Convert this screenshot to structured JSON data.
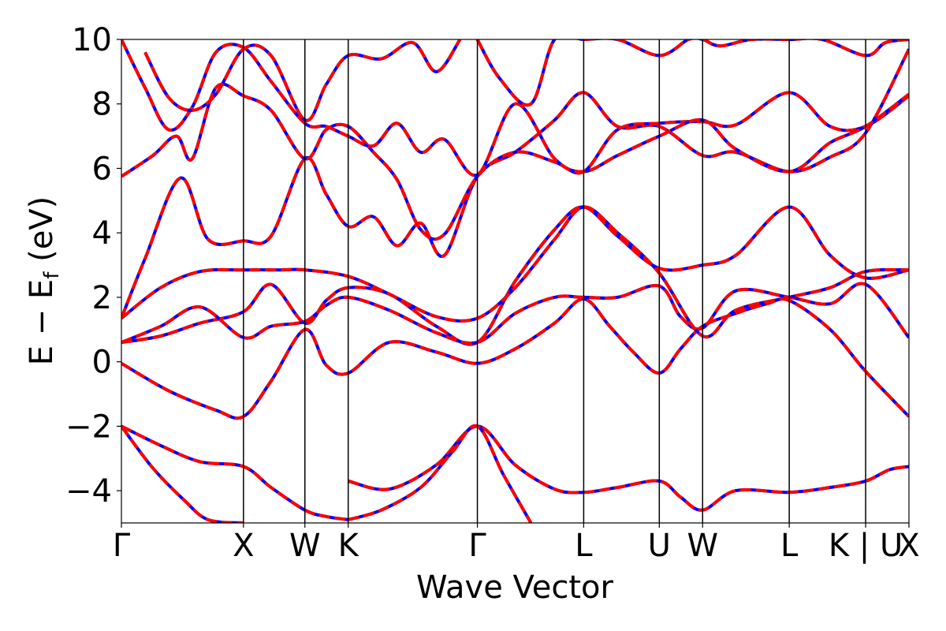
{
  "chart_data": {
    "type": "line",
    "title": "",
    "xlabel": "Wave Vector",
    "ylabel_parts": {
      "main": "E − E",
      "sub": "f",
      "unit": " (eV)"
    },
    "ylim": [
      -5,
      10
    ],
    "xlim": [
      0,
      10
    ],
    "yticks": [
      -4,
      -2,
      0,
      2,
      4,
      6,
      8,
      10
    ],
    "ytick_labels": [
      "−4",
      "−2",
      "0",
      "2",
      "4",
      "6",
      "8",
      "10"
    ],
    "kpoints": [
      {
        "label": "Γ",
        "x": 0.0
      },
      {
        "label": "X",
        "x": 1.55
      },
      {
        "label": "W",
        "x": 2.33
      },
      {
        "label": "K",
        "x": 2.88
      },
      {
        "label": "Γ",
        "x": 4.52
      },
      {
        "label": "L",
        "x": 5.87
      },
      {
        "label": "U",
        "x": 6.83
      },
      {
        "label": "W",
        "x": 7.38
      },
      {
        "label": "L",
        "x": 8.48
      },
      {
        "label": "K | U",
        "x": 9.45
      },
      {
        "label": "X",
        "x": 10.0
      }
    ],
    "grid": false,
    "series_colors": {
      "solid": "#ff0000",
      "dashed": "#0000ff"
    },
    "series": [
      {
        "style": "solid-red-with-blue-dash",
        "x": [
          0,
          0.5,
          1.0,
          1.55,
          1.9,
          2.33,
          2.6,
          2.88
        ],
        "y": [
          -2.0,
          -2.6,
          -3.1,
          -3.25,
          -3.9,
          -4.6,
          -4.8,
          -4.9
        ]
      },
      {
        "style": "solid-red-with-blue-dash",
        "x": [
          0,
          0.4,
          0.8,
          1.1,
          1.55
        ],
        "y": [
          -2.0,
          -3.3,
          -4.3,
          -4.9,
          -5.0
        ]
      },
      {
        "style": "solid-red-with-blue-dash",
        "x": [
          2.88,
          3.4,
          4.0,
          4.52,
          5.0,
          5.5,
          5.87,
          6.3,
          6.83,
          7.1,
          7.38,
          7.8,
          8.48,
          9.0,
          9.45,
          9.75,
          10.0
        ],
        "y": [
          -3.7,
          -3.95,
          -3.2,
          -2.0,
          -3.2,
          -3.95,
          -4.05,
          -3.9,
          -3.7,
          -4.2,
          -4.6,
          -4.0,
          -4.05,
          -3.9,
          -3.7,
          -3.35,
          -3.25
        ]
      },
      {
        "style": "solid-red-with-blue-dash",
        "x": [
          2.88,
          3.3,
          3.8,
          4.2,
          4.52,
          4.85,
          5.2
        ],
        "y": [
          -4.9,
          -4.6,
          -3.9,
          -2.8,
          -2.0,
          -3.5,
          -5.0
        ]
      },
      {
        "style": "solid-red-with-blue-dash",
        "x": [
          0,
          0.6,
          1.2,
          1.55,
          1.9,
          2.33,
          2.6,
          2.88,
          3.4,
          4.0,
          4.52,
          5.0,
          5.5,
          5.87,
          6.2,
          6.5,
          6.83,
          7.1,
          7.38,
          7.8,
          8.2,
          8.48,
          9.0,
          9.45,
          10.0
        ],
        "y": [
          -0.05,
          -0.9,
          -1.5,
          -1.7,
          -0.6,
          1.0,
          -0.1,
          -0.35,
          0.6,
          0.3,
          -0.05,
          0.4,
          1.2,
          1.95,
          1.1,
          0.3,
          -0.35,
          0.4,
          1.1,
          1.5,
          1.8,
          1.9,
          1.0,
          -0.3,
          -1.7
        ]
      },
      {
        "style": "solid-red-with-blue-dash",
        "x": [
          0,
          0.5,
          1.0,
          1.55,
          1.9,
          2.33,
          2.6,
          2.88,
          3.4,
          4.0,
          4.52,
          5.0,
          5.5,
          5.87,
          6.3,
          6.83,
          7.38,
          7.8,
          8.48,
          9.0,
          9.45,
          10.0
        ],
        "y": [
          0.6,
          0.8,
          1.2,
          1.55,
          2.4,
          1.2,
          1.9,
          2.3,
          2.1,
          1.1,
          0.6,
          2.5,
          4.1,
          4.8,
          3.9,
          2.9,
          3.0,
          3.3,
          4.8,
          3.3,
          2.6,
          2.85
        ]
      },
      {
        "style": "solid-red-with-blue-dash",
        "x": [
          0,
          0.5,
          1.0,
          1.55,
          1.9,
          2.33,
          2.6,
          2.88,
          3.4,
          4.0,
          4.52,
          5.0,
          5.5,
          5.87,
          6.3,
          6.83,
          7.1,
          7.38,
          7.8,
          8.48,
          9.0,
          9.45,
          10.0
        ],
        "y": [
          0.6,
          1.1,
          1.7,
          0.75,
          1.1,
          1.25,
          1.75,
          2.0,
          1.6,
          0.9,
          0.6,
          1.5,
          2.0,
          2.0,
          2.0,
          2.35,
          1.4,
          1.05,
          2.2,
          2.0,
          1.8,
          2.4,
          0.75
        ]
      },
      {
        "style": "solid-red-with-blue-dash",
        "x": [
          0,
          0.5,
          1.0,
          1.55,
          2.0,
          2.33,
          2.88,
          3.4,
          4.0,
          4.52,
          5.0,
          5.5,
          5.87,
          6.3,
          6.83,
          7.38,
          7.8,
          8.48,
          9.0,
          9.45,
          10.0
        ],
        "y": [
          1.35,
          2.3,
          2.8,
          2.85,
          2.85,
          2.85,
          2.65,
          2.1,
          1.4,
          1.35,
          2.3,
          3.8,
          4.8,
          4.0,
          2.75,
          0.8,
          1.6,
          2.0,
          2.3,
          2.8,
          2.85
        ]
      },
      {
        "style": "solid-red-with-blue-dash",
        "x": [
          0,
          0.3,
          0.75,
          1.1,
          1.55,
          1.9,
          2.33,
          2.6,
          2.88,
          3.2,
          3.5,
          3.8,
          4.1,
          4.52,
          5.0,
          5.5,
          5.87,
          6.3,
          6.83,
          7.38,
          7.8,
          8.48,
          9.0,
          9.45,
          10.0
        ],
        "y": [
          1.35,
          3.2,
          5.7,
          3.8,
          3.75,
          3.9,
          6.3,
          5.2,
          4.2,
          4.5,
          3.6,
          4.3,
          3.3,
          5.75,
          6.5,
          7.5,
          8.35,
          7.3,
          7.3,
          6.4,
          6.5,
          5.9,
          6.35,
          7.1,
          9.7
        ]
      },
      {
        "style": "solid-red-with-blue-dash",
        "x": [
          0,
          0.4,
          0.7,
          0.9,
          1.2,
          1.55,
          1.9,
          2.33,
          2.6,
          2.88,
          3.2,
          3.5,
          3.8,
          4.1,
          4.52,
          5.0,
          5.5,
          5.87,
          6.3,
          6.83,
          7.38,
          7.8,
          8.48,
          9.0,
          9.45,
          10.0
        ],
        "y": [
          5.75,
          6.4,
          7.0,
          6.3,
          8.5,
          8.25,
          7.8,
          6.3,
          7.2,
          7.3,
          6.5,
          5.65,
          4.1,
          3.95,
          5.75,
          6.5,
          6.2,
          5.9,
          7.2,
          7.4,
          7.45,
          7.35,
          8.35,
          7.3,
          7.3,
          8.25
        ]
      },
      {
        "style": "solid-red-with-blue-dash",
        "x": [
          0,
          0.3,
          0.6,
          0.9,
          1.2,
          1.55,
          1.9,
          2.33,
          2.6,
          2.88,
          3.2,
          3.5,
          3.8,
          4.1,
          4.52,
          5.0,
          5.5,
          5.87,
          6.3,
          6.83,
          7.38,
          7.8,
          8.48,
          9.0,
          9.45,
          10.0
        ],
        "y": [
          10.0,
          8.5,
          7.2,
          7.9,
          9.6,
          9.75,
          8.7,
          7.4,
          7.3,
          7.0,
          6.7,
          7.4,
          6.5,
          6.9,
          5.8,
          8.0,
          6.3,
          5.9,
          6.4,
          7.0,
          7.5,
          6.6,
          5.9,
          6.8,
          7.3,
          8.3
        ]
      },
      {
        "style": "solid-red-with-blue-dash",
        "x": [
          0.3,
          0.6,
          0.9,
          1.2,
          1.55,
          1.9,
          2.33,
          2.6,
          2.88,
          3.3,
          3.7,
          4.0,
          4.3
        ],
        "y": [
          9.6,
          8.2,
          7.8,
          8.3,
          9.7,
          9.5,
          7.5,
          8.6,
          9.5,
          9.4,
          9.9,
          9.0,
          10.0
        ]
      },
      {
        "style": "solid-red-with-blue-dash",
        "x": [
          4.52,
          4.8,
          5.2,
          5.5,
          5.87,
          6.3,
          6.83,
          7.2,
          7.38,
          7.6,
          8.0,
          8.48,
          8.9,
          9.45,
          9.7,
          10.0
        ],
        "y": [
          10.0,
          8.8,
          8.0,
          10.0,
          10.0,
          10.0,
          9.5,
          10.0,
          10.0,
          9.8,
          10.0,
          10.0,
          10.0,
          9.5,
          9.9,
          10.0
        ]
      }
    ]
  }
}
